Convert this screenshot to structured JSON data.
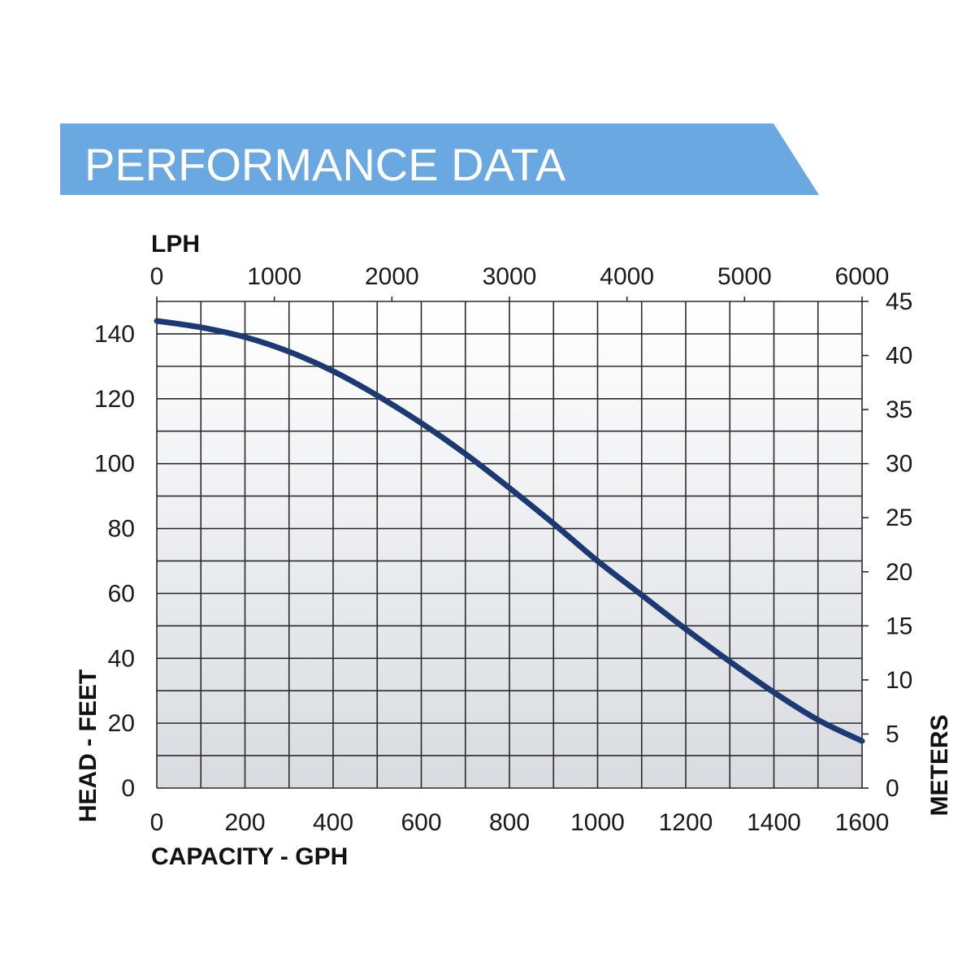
{
  "header": {
    "title": "PERFORMANCE DATA",
    "color": "#6AA8E2"
  },
  "chart_data": {
    "type": "line",
    "title": "PERFORMANCE DATA",
    "xlabel": "CAPACITY - GPH",
    "ylabel": "HEAD - FEET",
    "x2label": "LPH",
    "y2label": "METERS",
    "xlim": [
      0,
      1600
    ],
    "ylim": [
      0,
      150
    ],
    "x2lim": [
      0,
      6000
    ],
    "y2lim": [
      0,
      45
    ],
    "x_ticks": [
      "0",
      "200",
      "400",
      "600",
      "800",
      "1000",
      "1200",
      "1400",
      "1600"
    ],
    "y_ticks": [
      "0",
      "20",
      "40",
      "60",
      "80",
      "100",
      "120",
      "140"
    ],
    "x2_ticks": [
      "0",
      "1000",
      "2000",
      "3000",
      "4000",
      "5000",
      "6000"
    ],
    "y2_ticks": [
      "0",
      "5",
      "10",
      "15",
      "20",
      "25",
      "30",
      "35",
      "40",
      "45"
    ],
    "grid": true,
    "line_color": "#1B3A73",
    "series": [
      {
        "x": [
          0,
          100,
          200,
          300,
          400,
          500,
          600,
          700,
          800,
          900,
          1000,
          1100,
          1200,
          1300,
          1400,
          1500,
          1600
        ],
        "values": [
          144,
          142,
          139,
          134.5,
          128.5,
          121,
          112.5,
          103,
          92.5,
          81.5,
          70,
          59.5,
          49,
          39,
          29.5,
          21,
          14.5
        ]
      }
    ]
  }
}
